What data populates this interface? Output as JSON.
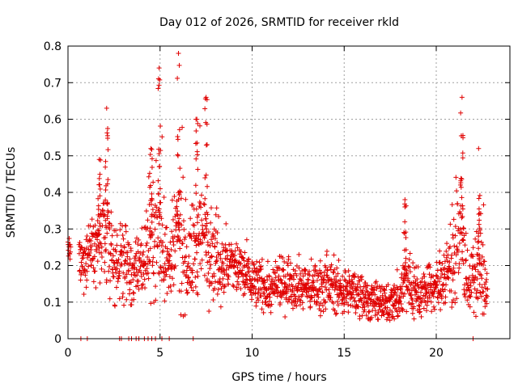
{
  "chart_data": {
    "type": "scatter",
    "title": "Day 012 of 2026, SRMTID for receiver rkld",
    "xlabel": "GPS time / hours",
    "ylabel": "SRMTID / TECUs",
    "xlim": [
      0,
      24
    ],
    "ylim": [
      0,
      0.8
    ],
    "xticks": [
      "0",
      "5",
      "10",
      "15",
      "20"
    ],
    "xtick_values": [
      0,
      5,
      10,
      15,
      20
    ],
    "yticks": [
      "0",
      "0.1",
      "0.2",
      "0.3",
      "0.4",
      "0.5",
      "0.6",
      "0.7",
      "0.8"
    ],
    "ytick_values": [
      0,
      0.1,
      0.2,
      0.3,
      0.4,
      0.5,
      0.6,
      0.7,
      0.8
    ],
    "grid": true,
    "marker": "plus",
    "series": [
      {
        "name": "SRMTID",
        "color": "#e00000",
        "zero_markers_x": [
          0.7,
          1.05,
          2.8,
          2.9,
          3.3,
          3.45,
          3.7,
          3.85,
          4.15,
          4.35,
          4.55,
          4.75,
          5.1,
          5.5,
          6.8,
          22.0
        ],
        "envelope": [
          {
            "t": 0.0,
            "base": 0.24,
            "spread": 0.04,
            "peak": 0.28
          },
          {
            "t": 0.8,
            "base": 0.2,
            "spread": 0.05,
            "peak": 0.27
          },
          {
            "t": 1.2,
            "base": 0.25,
            "spread": 0.08,
            "peak": 0.33
          },
          {
            "t": 1.7,
            "base": 0.28,
            "spread": 0.12,
            "peak": 0.49
          },
          {
            "t": 2.1,
            "base": 0.26,
            "spread": 0.14,
            "peak": 0.63
          },
          {
            "t": 2.5,
            "base": 0.2,
            "spread": 0.08,
            "peak": 0.3
          },
          {
            "t": 3.0,
            "base": 0.22,
            "spread": 0.09,
            "peak": 0.33
          },
          {
            "t": 3.5,
            "base": 0.18,
            "spread": 0.08,
            "peak": 0.27
          },
          {
            "t": 4.1,
            "base": 0.21,
            "spread": 0.09,
            "peak": 0.31
          },
          {
            "t": 4.5,
            "base": 0.27,
            "spread": 0.12,
            "peak": 0.52
          },
          {
            "t": 4.95,
            "base": 0.3,
            "spread": 0.16,
            "peak": 0.74
          },
          {
            "t": 5.5,
            "base": 0.18,
            "spread": 0.08,
            "peak": 0.3
          },
          {
            "t": 6.0,
            "base": 0.3,
            "spread": 0.17,
            "peak": 0.78
          },
          {
            "t": 6.5,
            "base": 0.2,
            "spread": 0.1,
            "peak": 0.34
          },
          {
            "t": 7.0,
            "base": 0.26,
            "spread": 0.13,
            "peak": 0.6
          },
          {
            "t": 7.5,
            "base": 0.28,
            "spread": 0.13,
            "peak": 0.66
          },
          {
            "t": 8.2,
            "base": 0.2,
            "spread": 0.08,
            "peak": 0.33
          },
          {
            "t": 9.0,
            "base": 0.2,
            "spread": 0.07,
            "peak": 0.32
          },
          {
            "t": 10.0,
            "base": 0.16,
            "spread": 0.06,
            "peak": 0.26
          },
          {
            "t": 11.0,
            "base": 0.13,
            "spread": 0.05,
            "peak": 0.22
          },
          {
            "t": 12.0,
            "base": 0.16,
            "spread": 0.06,
            "peak": 0.27
          },
          {
            "t": 13.0,
            "base": 0.14,
            "spread": 0.05,
            "peak": 0.23
          },
          {
            "t": 14.0,
            "base": 0.15,
            "spread": 0.06,
            "peak": 0.25
          },
          {
            "t": 15.0,
            "base": 0.13,
            "spread": 0.05,
            "peak": 0.22
          },
          {
            "t": 16.0,
            "base": 0.12,
            "spread": 0.05,
            "peak": 0.2
          },
          {
            "t": 17.0,
            "base": 0.09,
            "spread": 0.04,
            "peak": 0.15
          },
          {
            "t": 18.0,
            "base": 0.11,
            "spread": 0.05,
            "peak": 0.2
          },
          {
            "t": 18.3,
            "base": 0.16,
            "spread": 0.09,
            "peak": 0.38
          },
          {
            "t": 19.0,
            "base": 0.12,
            "spread": 0.05,
            "peak": 0.2
          },
          {
            "t": 20.0,
            "base": 0.14,
            "spread": 0.06,
            "peak": 0.24
          },
          {
            "t": 20.5,
            "base": 0.18,
            "spread": 0.08,
            "peak": 0.33
          },
          {
            "t": 21.0,
            "base": 0.23,
            "spread": 0.1,
            "peak": 0.4
          },
          {
            "t": 21.4,
            "base": 0.26,
            "spread": 0.14,
            "peak": 0.66
          },
          {
            "t": 21.8,
            "base": 0.14,
            "spread": 0.06,
            "peak": 0.24
          },
          {
            "t": 22.3,
            "base": 0.2,
            "spread": 0.1,
            "peak": 0.52
          },
          {
            "t": 22.8,
            "base": 0.12,
            "spread": 0.07,
            "peak": 0.3
          }
        ]
      }
    ]
  }
}
